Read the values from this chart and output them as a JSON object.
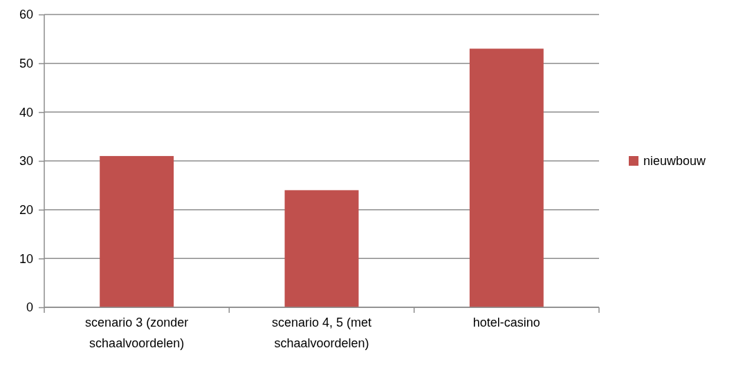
{
  "chart_data": {
    "type": "bar",
    "categories": [
      "scenario 3 (zonder schaalvoordelen)",
      "scenario 4, 5 (met schaalvoordelen)",
      "hotel-casino"
    ],
    "series": [
      {
        "name": "nieuwbouw",
        "color": "#c0504d",
        "values": [
          31,
          24,
          53
        ]
      }
    ],
    "ylim": [
      0,
      60
    ],
    "yticks": [
      0,
      10,
      20,
      30,
      40,
      50,
      60
    ],
    "grid": "y",
    "legend": "right"
  }
}
